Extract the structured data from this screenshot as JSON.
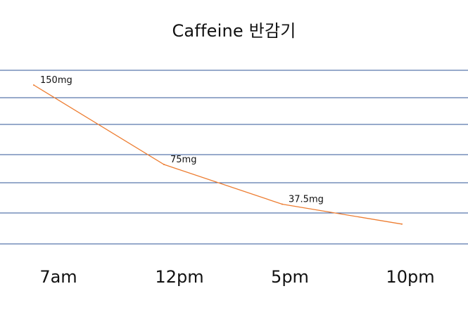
{
  "chart_data": {
    "type": "line",
    "title": "Caffeine 반감기",
    "categories": [
      "7am",
      "12pm",
      "5pm",
      "10pm"
    ],
    "values": [
      150,
      75,
      37.5,
      18.75
    ],
    "data_labels": [
      "150mg",
      "75mg",
      "37.5mg",
      ""
    ],
    "xlabel": "",
    "ylabel": "",
    "ylim": [
      0,
      160
    ],
    "grid": true,
    "legend": "none",
    "colors": {
      "line": "#ED7D31",
      "grid": "#2F5597",
      "text": "#111111"
    }
  }
}
